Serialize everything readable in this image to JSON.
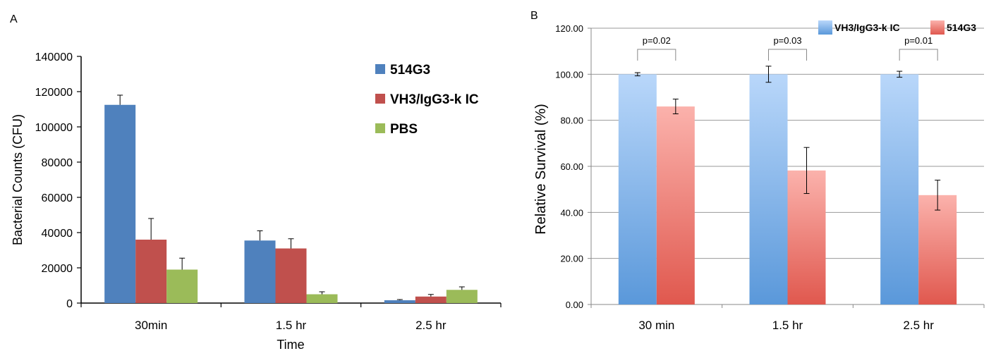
{
  "panel_labels": [
    "A",
    "B"
  ],
  "chart_data": [
    {
      "type": "bar",
      "panel": "A",
      "categories": [
        "30min",
        "1.5 hr",
        "2.5 hr"
      ],
      "xlabel": "Time",
      "ylabel": "Bacterial Counts (CFU)",
      "ylim": [
        0,
        140000
      ],
      "yticks": [
        "0",
        "20000",
        "40000",
        "60000",
        "80000",
        "100000",
        "120000",
        "140000"
      ],
      "grid": false,
      "legend_position": "right",
      "series": [
        {
          "name": "514G3",
          "color": "#4F81BD",
          "values": [
            112500,
            35500,
            1600
          ],
          "errors": [
            5500,
            5500,
            400
          ]
        },
        {
          "name": "VH3/IgG3-k IC",
          "color": "#C0504D",
          "values": [
            36000,
            31000,
            3700
          ],
          "errors": [
            12000,
            5500,
            1200
          ]
        },
        {
          "name": "PBS",
          "color": "#9BBB59",
          "values": [
            19000,
            5000,
            7500
          ],
          "errors": [
            6500,
            1400,
            1700
          ]
        }
      ]
    },
    {
      "type": "bar",
      "panel": "B",
      "categories": [
        "30 min",
        "1.5 hr",
        "2.5 hr"
      ],
      "xlabel": "",
      "ylabel": "Relative Survival (%)",
      "ylim": [
        0,
        120
      ],
      "yticks": [
        "0.00",
        "20.00",
        "40.00",
        "60.00",
        "80.00",
        "100.00",
        "120.00"
      ],
      "grid": true,
      "legend_position": "top-right",
      "series": [
        {
          "name": "VH3/IgG3-k IC",
          "color": "#8DBBF0",
          "values": [
            100,
            100,
            100
          ],
          "errors": [
            0.7,
            3.5,
            1.3
          ]
        },
        {
          "name": "514G3",
          "color": "#F08880",
          "values": [
            86,
            58.2,
            47.5
          ],
          "errors": [
            3.2,
            10,
            6.5
          ]
        }
      ],
      "annotations": [
        "p=0.02",
        "p=0.03",
        "p=0.01"
      ]
    }
  ]
}
